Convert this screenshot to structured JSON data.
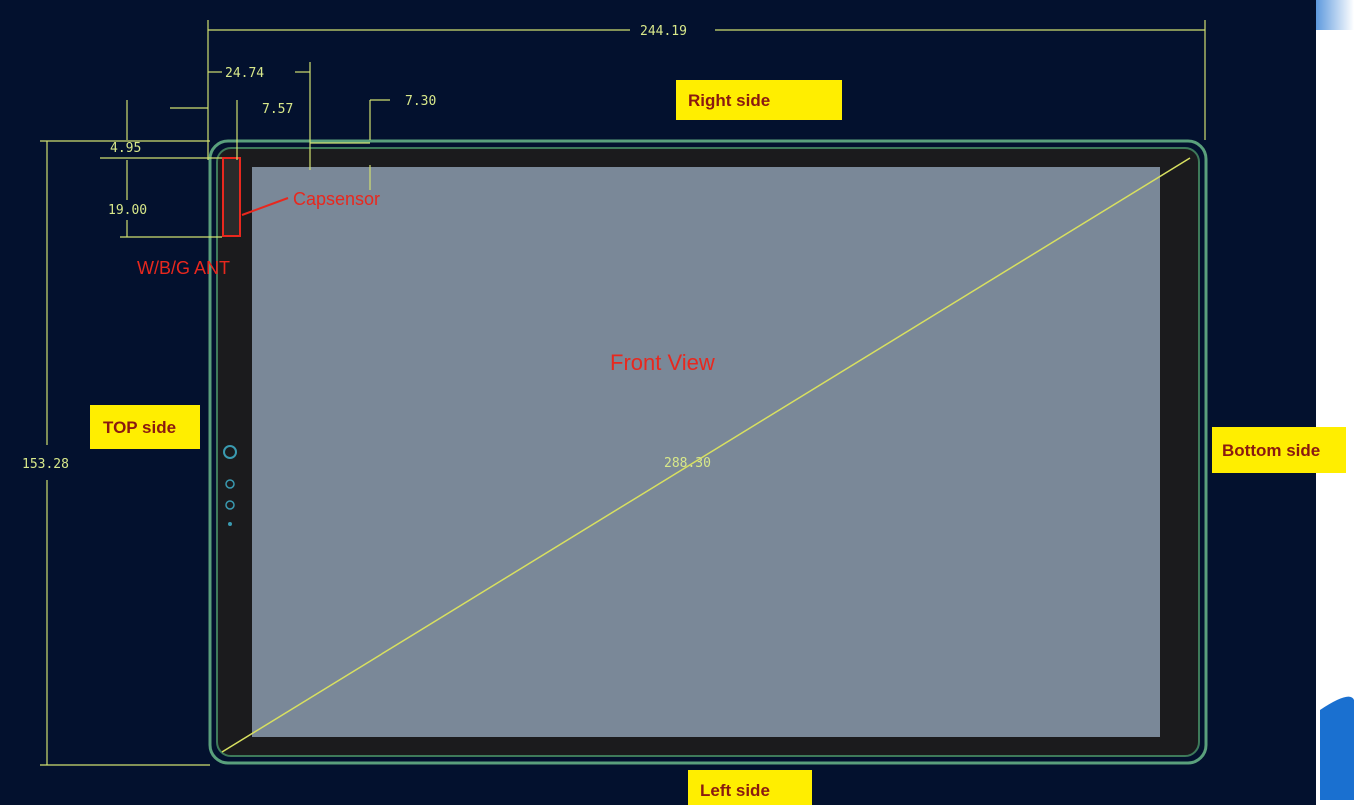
{
  "drawing": {
    "view_title": "Front View",
    "callouts": {
      "capsensor": "Capsensor",
      "antenna": "W/B/G ANT"
    },
    "sides": {
      "right": "Right side",
      "top": "TOP side",
      "bottom": "Bottom side",
      "left": "Left side"
    },
    "dimensions": {
      "width": "244.19",
      "ant_offset": "24.74",
      "cap_offset": "7.57",
      "bezel_top": "7.30",
      "ant_top": "4.95",
      "ant_length": "19.00",
      "height": "153.28",
      "diagonal": "288.30"
    }
  }
}
